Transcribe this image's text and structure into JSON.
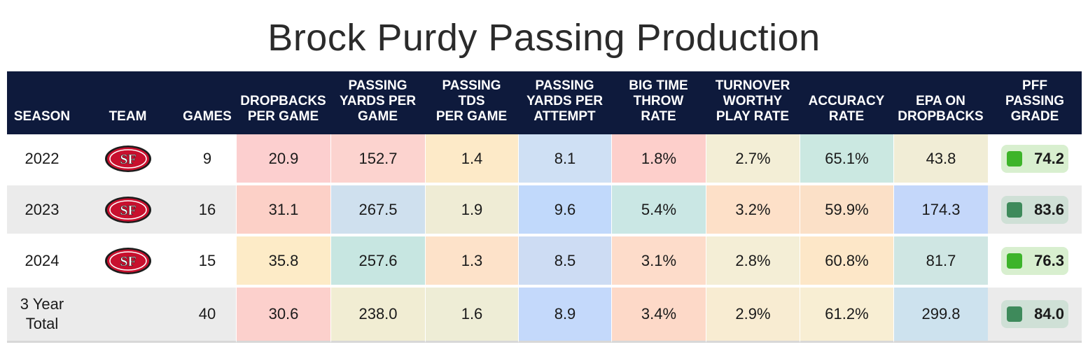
{
  "title": "Brock Purdy Passing Production",
  "colors": {
    "header_bg": "#0e1a3c",
    "row_alt_bg": "#ebebeb",
    "grade_good": "#3db42a",
    "grade_great": "#3e8a5b"
  },
  "chart_data": {
    "type": "table",
    "title": "Brock Purdy Passing Production",
    "columns": [
      "SEASON",
      "TEAM",
      "GAMES",
      "DROPBACKS\nPER GAME",
      "PASSING\nYARDS PER\nGAME",
      "PASSING\nTDS\nPER GAME",
      "PASSING\nYARDS PER\nATTEMPT",
      "BIG TIME\nTHROW\nRATE",
      "TURNOVER\nWORTHY\nPLAY RATE",
      "ACCURACY\nRATE",
      "EPA ON\nDROPBACKS",
      "PFF\nPASSING\nGRADE"
    ],
    "rows": [
      {
        "season": "2022",
        "team_icon": "49ers-logo-icon",
        "games": "9",
        "metrics": [
          "20.9",
          "152.7",
          "1.4",
          "8.1",
          "1.8%",
          "2.7%",
          "65.1%",
          "43.8"
        ],
        "metric_colors": [
          "#fccfcf",
          "#fcd3cf",
          "#fdeac8",
          "#cfe0f4",
          "#fdcfcb",
          "#f3eed6",
          "#cbe8e1",
          "#f1edd6"
        ],
        "grade": "74.2",
        "grade_color": "#3db42a",
        "grade_bg": "#d8efcf"
      },
      {
        "season": "2023",
        "team_icon": "49ers-logo-icon",
        "games": "16",
        "metrics": [
          "31.1",
          "267.5",
          "1.9",
          "9.6",
          "5.4%",
          "3.2%",
          "59.9%",
          "174.3"
        ],
        "metric_colors": [
          "#fcd0c7",
          "#cfe0ee",
          "#efecd5",
          "#c1d9fb",
          "#cae7e4",
          "#fde0c8",
          "#fbe0c7",
          "#c4d7fa"
        ],
        "grade": "83.6",
        "grade_color": "#3e8a5b",
        "grade_bg": "#cfe0d6"
      },
      {
        "season": "2024",
        "team_icon": "49ers-logo-icon",
        "games": "15",
        "metrics": [
          "35.8",
          "257.6",
          "1.3",
          "8.5",
          "3.1%",
          "2.8%",
          "60.8%",
          "81.7"
        ],
        "metric_colors": [
          "#fdebc7",
          "#c7e6e1",
          "#fde2c9",
          "#cddcf3",
          "#fddcca",
          "#f4eed6",
          "#fde7c8",
          "#cfe6e3"
        ],
        "grade": "76.3",
        "grade_color": "#3db42a",
        "grade_bg": "#d8efcf"
      },
      {
        "season": "3 Year\nTotal",
        "team_icon": "",
        "games": "40",
        "metrics": [
          "30.6",
          "238.0",
          "1.6",
          "8.9",
          "3.4%",
          "2.9%",
          "61.2%",
          "299.8"
        ],
        "metric_colors": [
          "#fcd0cc",
          "#f1edd3",
          "#eeedd6",
          "#c4d9fb",
          "#fdd9c8",
          "#f8ecd2",
          "#f8eed3",
          "#cde2ee"
        ],
        "grade": "84.0",
        "grade_color": "#3e8a5b",
        "grade_bg": "#cfe0d6"
      }
    ]
  }
}
